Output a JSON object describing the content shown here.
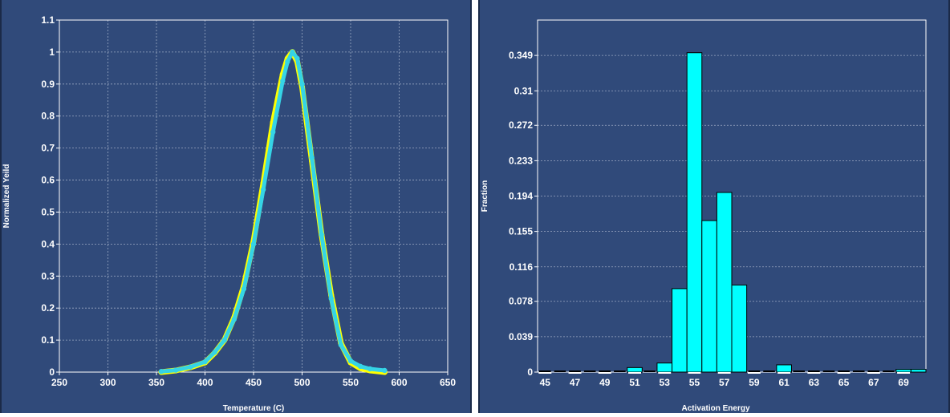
{
  "colors": {
    "panel_bg": "#304a7a",
    "grid": "#9aa8c2",
    "axis": "#ffffff",
    "series_a": "#ffff00",
    "series_b": "#35d4e6",
    "bar_fill": "#00ffff",
    "bar_stroke": "#000000"
  },
  "chart_data": [
    {
      "type": "scatter",
      "xlabel": "Temperature (C)",
      "ylabel": "Normalized Yeild",
      "xlim": [
        250,
        650
      ],
      "ylim": [
        0,
        1.1
      ],
      "x_ticks": [
        "250",
        "300",
        "350",
        "400",
        "450",
        "500",
        "550",
        "600",
        "650"
      ],
      "y_ticks": [
        "0",
        "0.1",
        "0.2",
        "0.3",
        "0.4",
        "0.5",
        "0.6",
        "0.7",
        "0.8",
        "0.9",
        "1",
        "1.1"
      ],
      "grid": true,
      "series": [
        {
          "color": "#ffff00",
          "x": [
            355,
            370,
            385,
            400,
            410,
            420,
            430,
            440,
            450,
            460,
            470,
            480,
            485,
            490,
            495,
            500,
            510,
            520,
            530,
            540,
            550,
            560,
            570,
            585
          ],
          "y": [
            0.0,
            0.005,
            0.015,
            0.03,
            0.06,
            0.1,
            0.17,
            0.27,
            0.41,
            0.59,
            0.78,
            0.93,
            0.98,
            1.0,
            0.97,
            0.89,
            0.66,
            0.43,
            0.24,
            0.09,
            0.03,
            0.012,
            0.005,
            0.0
          ]
        },
        {
          "color": "#35d4e6",
          "x": [
            355,
            370,
            385,
            400,
            410,
            420,
            430,
            440,
            450,
            460,
            470,
            480,
            485,
            490,
            495,
            500,
            510,
            520,
            530,
            540,
            550,
            560,
            570,
            585
          ],
          "y": [
            0.002,
            0.006,
            0.016,
            0.032,
            0.062,
            0.1,
            0.165,
            0.26,
            0.4,
            0.57,
            0.75,
            0.91,
            0.97,
            1.0,
            0.98,
            0.9,
            0.67,
            0.43,
            0.23,
            0.085,
            0.035,
            0.018,
            0.01,
            0.005
          ]
        }
      ]
    },
    {
      "type": "bar",
      "xlabel": "Activation Energy",
      "ylabel": "Fraction",
      "categories": [
        "45",
        "46",
        "47",
        "48",
        "49",
        "50",
        "51",
        "52",
        "53",
        "54",
        "55",
        "56",
        "57",
        "58",
        "59",
        "60",
        "61",
        "62",
        "63",
        "64",
        "65",
        "66",
        "67",
        "68",
        "69",
        "70"
      ],
      "x_ticks": [
        "45",
        "47",
        "49",
        "51",
        "53",
        "55",
        "57",
        "59",
        "61",
        "63",
        "65",
        "67",
        "69"
      ],
      "y_ticks": [
        "0",
        "0.039",
        "0.078",
        "0.116",
        "0.155",
        "0.194",
        "0.233",
        "0.272",
        "0.31",
        "0.349"
      ],
      "ylim": [
        0,
        0.388
      ],
      "values": [
        0.0,
        0.0,
        0.0,
        0.0,
        0.0,
        0.0,
        0.005,
        0.0,
        0.01,
        0.092,
        0.352,
        0.167,
        0.198,
        0.096,
        0.0,
        0.0,
        0.008,
        0.0,
        0.0,
        0.0,
        0.0,
        0.0,
        0.0,
        0.0,
        0.003,
        0.003
      ],
      "grid": true
    }
  ]
}
